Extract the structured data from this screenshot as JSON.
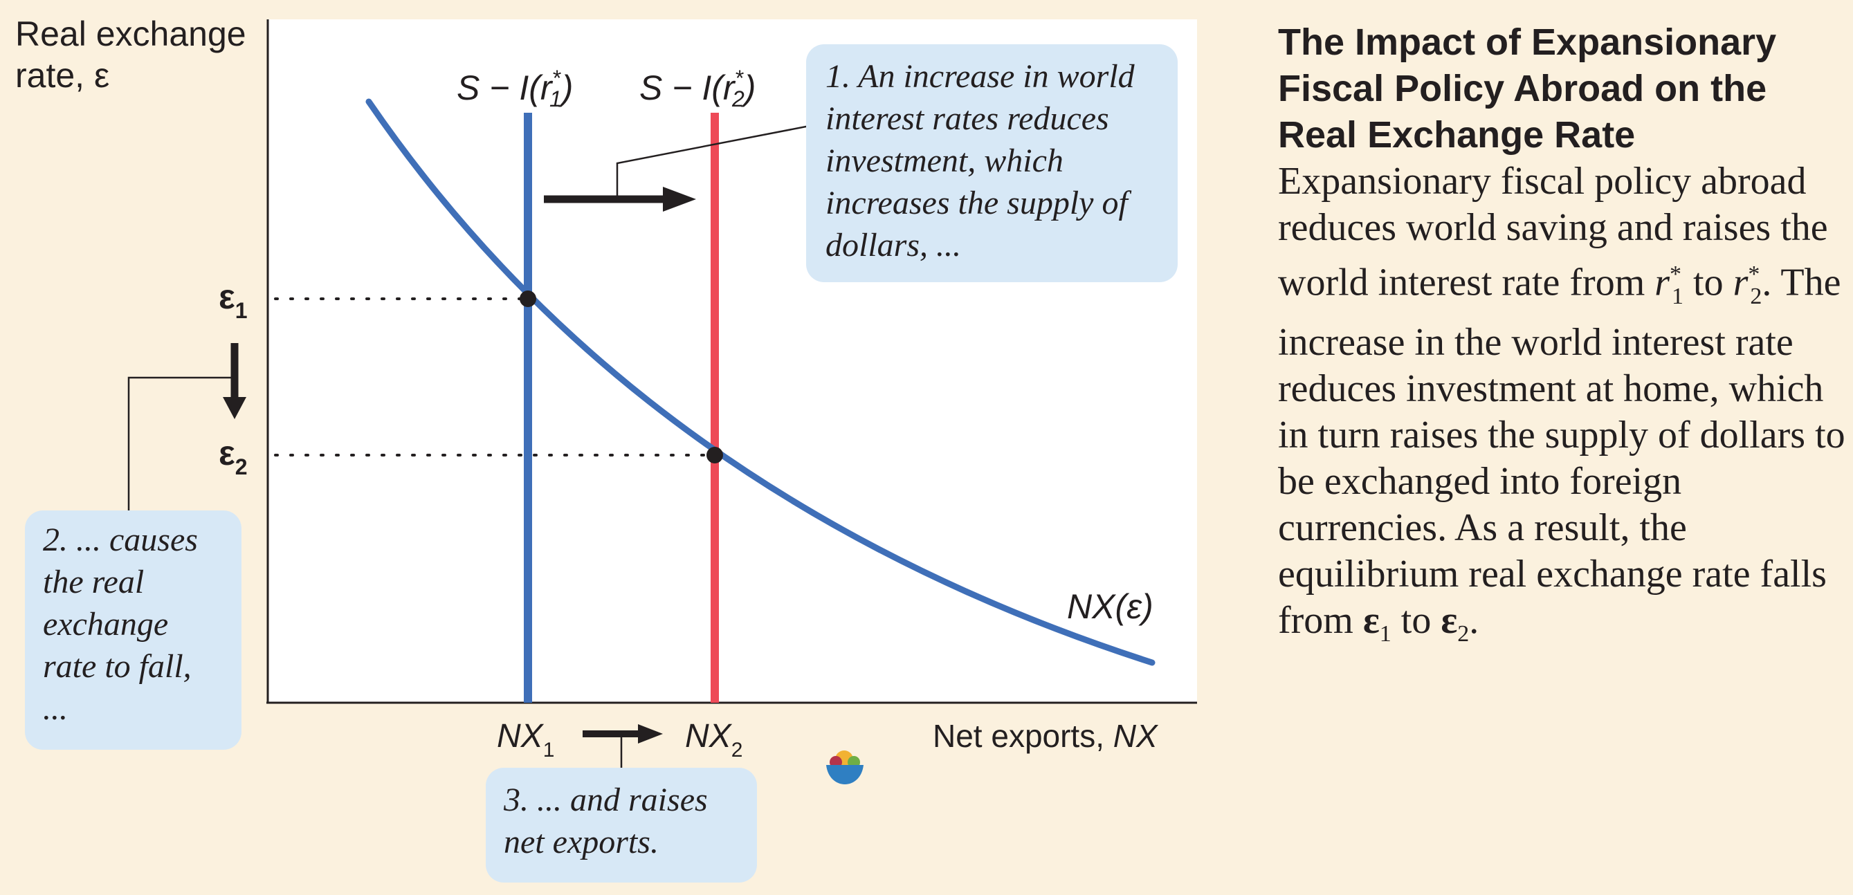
{
  "diagram": {
    "y_axis_label_line1": "Real exchange",
    "y_axis_label_line2": "rate, ",
    "y_axis_symbol": "ε",
    "x_axis_label": "Net exports, ",
    "x_axis_symbol": "NX",
    "curve_label": "NX(ε)",
    "line1_label_prefix": "S − I(",
    "line1_r": "r",
    "line1_sub": "1",
    "line1_sup": "*",
    "line1_suffix": ")",
    "line2_label_prefix": "S − I(",
    "line2_r": "r",
    "line2_sub": "2",
    "line2_sup": "*",
    "line2_suffix": ")",
    "eps1": "ε",
    "eps1_sub": "1",
    "eps2": "ε",
    "eps2_sub": "2",
    "nx1": "NX",
    "nx1_sub": "1",
    "nx2": "NX",
    "nx2_sub": "2",
    "colors": {
      "curve": "#3f6fb8",
      "line1": "#3f6fb8",
      "line2": "#ee4a57",
      "annotation_bg": "#d7e8f6",
      "page_bg": "#fbf1de"
    }
  },
  "annotations": {
    "a1": "1. An increase in world interest rates reduces investment, which increases the supply of dollars, ...",
    "a2": "2. ... causes the real exchange rate to fall, ...",
    "a3": "3. ... and raises net exports."
  },
  "caption": {
    "title": "The Impact of Expansionary Fiscal Policy Abroad on the Real Exchange Rate",
    "body_1": "Expansionary fiscal policy abroad reduces world saving and raises the world interest rate from ",
    "r1": "r",
    "r1_sub": "1",
    "r1_sup": "*",
    "body_2": " to ",
    "r2": "r",
    "r2_sub": "2",
    "r2_sup": "*",
    "body_3": ". The increase in the world interest rate reduces investment at home, which in turn raises the supply of dollars to be exchanged into foreign currencies. As a result, the equilibrium real exchange rate falls from ",
    "e1": "ε",
    "e1_sub": "1",
    "body_4": " to ",
    "e2": "ε",
    "e2_sub": "2",
    "body_5": "."
  },
  "logo_icon": "bowl-logo-icon"
}
